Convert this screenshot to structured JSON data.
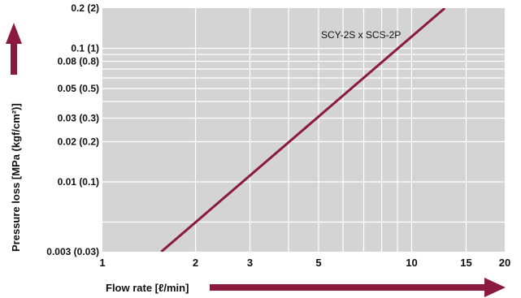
{
  "chart_data": {
    "type": "line",
    "x_scale": "log",
    "y_scale": "log",
    "xlim": [
      1,
      20
    ],
    "ylim": [
      0.003,
      0.2
    ],
    "grid": true,
    "xlabel": "Flow rate [ℓ/min]",
    "ylabel": "Pressure loss [MPa (kgf/cm²)]",
    "x_ticks": [
      {
        "value": 1,
        "label": "1"
      },
      {
        "value": 2,
        "label": "2"
      },
      {
        "value": 3,
        "label": "3"
      },
      {
        "value": 5,
        "label": "5"
      },
      {
        "value": 10,
        "label": "10"
      },
      {
        "value": 15,
        "label": "15"
      },
      {
        "value": 20,
        "label": "20"
      }
    ],
    "y_ticks": [
      {
        "value": 0.003,
        "label": "0.003 (0.03)"
      },
      {
        "value": 0.01,
        "label": "0.01 (0.1)"
      },
      {
        "value": 0.02,
        "label": "0.02 (0.2)"
      },
      {
        "value": 0.03,
        "label": "0.03 (0.3)"
      },
      {
        "value": 0.05,
        "label": "0.05 (0.5)"
      },
      {
        "value": 0.08,
        "label": "0.08 (0.8)"
      },
      {
        "value": 0.1,
        "label": "0.1 (1)"
      },
      {
        "value": 0.2,
        "label": "0.2 (2)"
      }
    ],
    "x_gridlines": [
      2,
      3,
      4,
      5,
      6,
      7,
      8,
      9,
      10,
      15
    ],
    "y_gridlines": [
      0.005,
      0.01,
      0.02,
      0.03,
      0.04,
      0.05,
      0.06,
      0.07,
      0.08,
      0.09,
      0.1
    ],
    "series": [
      {
        "name": "SCY-2S x SCS-2P",
        "color": "#8b1a3f",
        "x": [
          1.55,
          12.8
        ],
        "y": [
          0.003,
          0.2
        ]
      }
    ],
    "colors": {
      "plot_background": "#d4d4d4",
      "grid": "#ffffff",
      "series": "#8b1a3f",
      "arrows": "#8b1a3f"
    }
  }
}
